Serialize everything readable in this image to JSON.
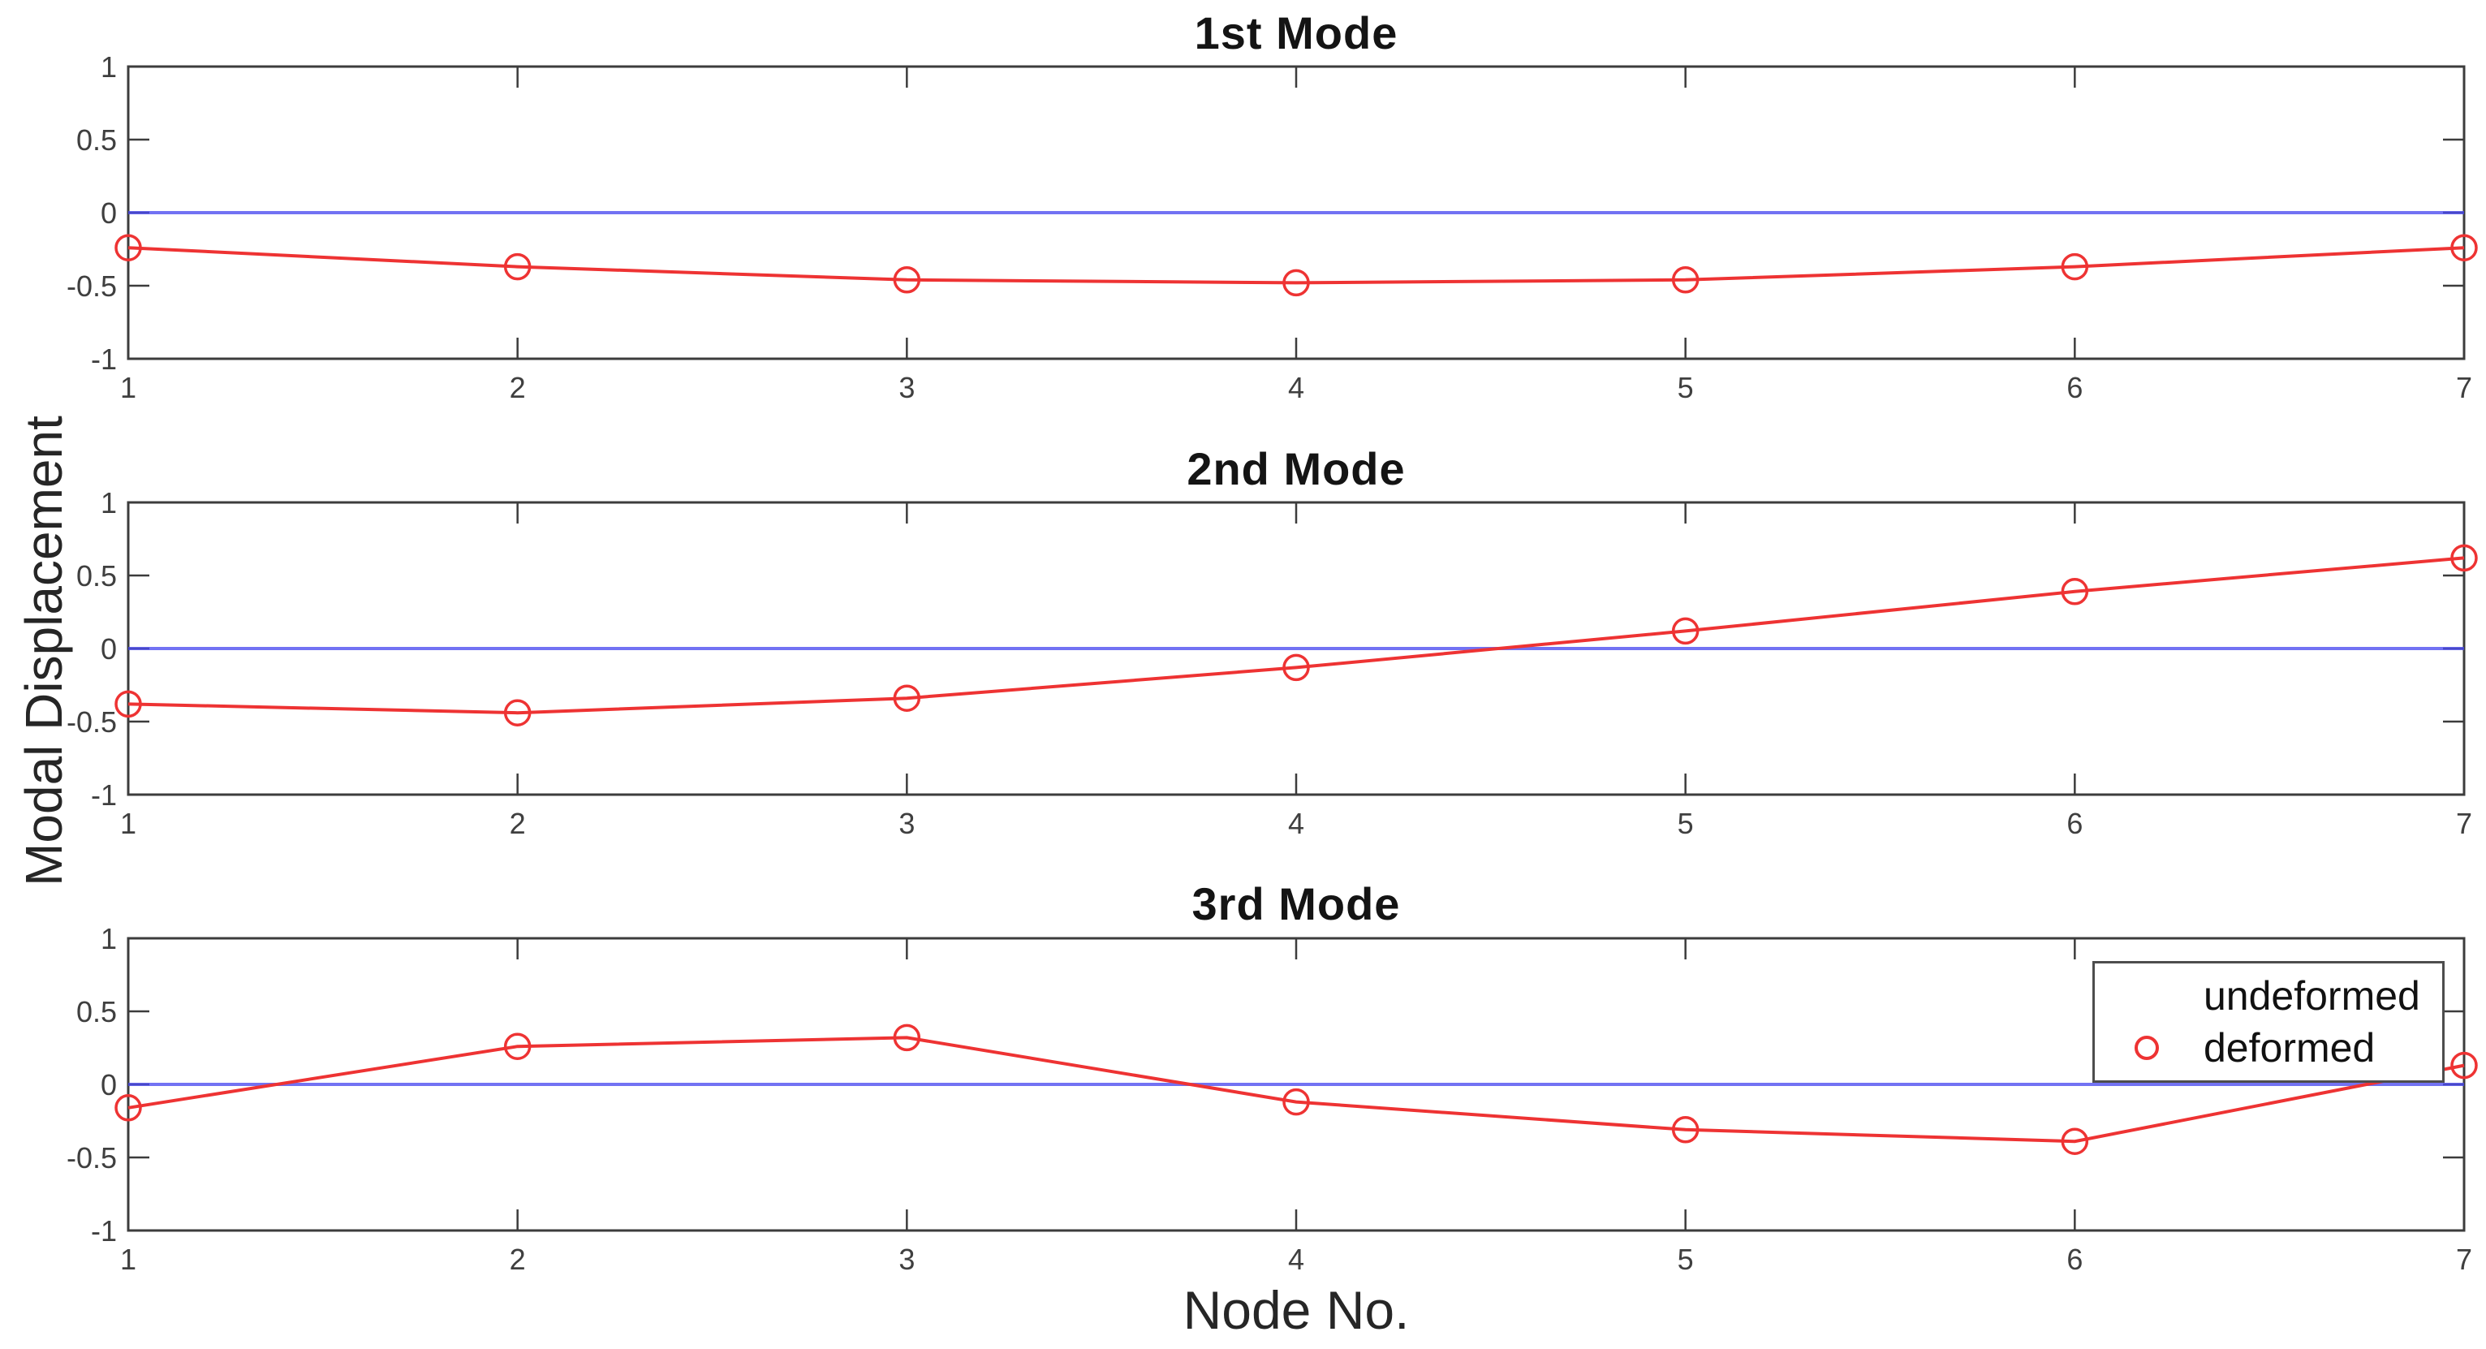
{
  "figure": {
    "ylabel": "Modal Displacement",
    "xlabel": "Node No.",
    "colors": {
      "undeformed": "#4a4af0",
      "deformed": "#ee3333",
      "axis": "#3c3c3c",
      "tick_text": "#3f3f3f",
      "title_text": "#141414"
    }
  },
  "legend": {
    "position": "top-right-of-3rd-subplot",
    "items": [
      {
        "label": "undeformed",
        "color": "#4a4af0",
        "marker": "line"
      },
      {
        "label": "deformed",
        "color": "#ee3333",
        "marker": "line-circle"
      }
    ]
  },
  "chart_data": [
    {
      "type": "line",
      "title": "1st Mode",
      "x": [
        1,
        2,
        3,
        4,
        5,
        6,
        7
      ],
      "x_tick_labels": [
        "1",
        "2",
        "3",
        "4",
        "5",
        "6",
        "7"
      ],
      "y_ticks": [
        1,
        0.5,
        0,
        -0.5,
        -1
      ],
      "y_tick_labels": [
        "1",
        "0.5",
        "0",
        "-0.5",
        "-1"
      ],
      "ylim": [
        -1,
        1
      ],
      "grid": false,
      "series": [
        {
          "name": "undeformed",
          "values": [
            0,
            0,
            0,
            0,
            0,
            0,
            0
          ],
          "marker": "none"
        },
        {
          "name": "deformed",
          "values": [
            -0.24,
            -0.37,
            -0.46,
            -0.48,
            -0.46,
            -0.37,
            -0.24
          ],
          "marker": "circle"
        }
      ]
    },
    {
      "type": "line",
      "title": "2nd Mode",
      "x": [
        1,
        2,
        3,
        4,
        5,
        6,
        7
      ],
      "x_tick_labels": [
        "1",
        "2",
        "3",
        "4",
        "5",
        "6",
        "7"
      ],
      "y_ticks": [
        1,
        0.5,
        0,
        -0.5,
        -1
      ],
      "y_tick_labels": [
        "1",
        "0.5",
        "0",
        "-0.5",
        "-1"
      ],
      "ylim": [
        -1,
        1
      ],
      "grid": false,
      "series": [
        {
          "name": "undeformed",
          "values": [
            0,
            0,
            0,
            0,
            0,
            0,
            0
          ],
          "marker": "none"
        },
        {
          "name": "deformed",
          "values": [
            -0.38,
            -0.44,
            -0.34,
            -0.13,
            0.12,
            0.39,
            0.62
          ],
          "marker": "circle"
        }
      ]
    },
    {
      "type": "line",
      "title": "3rd Mode",
      "x": [
        1,
        2,
        3,
        4,
        5,
        6,
        7
      ],
      "x_tick_labels": [
        "1",
        "2",
        "3",
        "4",
        "5",
        "6",
        "7"
      ],
      "y_ticks": [
        1,
        0.5,
        0,
        -0.5,
        -1
      ],
      "y_tick_labels": [
        "1",
        "0.5",
        "0",
        "-0.5",
        "-1"
      ],
      "ylim": [
        -1,
        1
      ],
      "grid": false,
      "series": [
        {
          "name": "undeformed",
          "values": [
            0,
            0,
            0,
            0,
            0,
            0,
            0
          ],
          "marker": "none"
        },
        {
          "name": "deformed",
          "values": [
            -0.16,
            0.26,
            0.32,
            -0.12,
            -0.31,
            -0.39,
            0.13
          ],
          "marker": "circle"
        }
      ]
    }
  ]
}
